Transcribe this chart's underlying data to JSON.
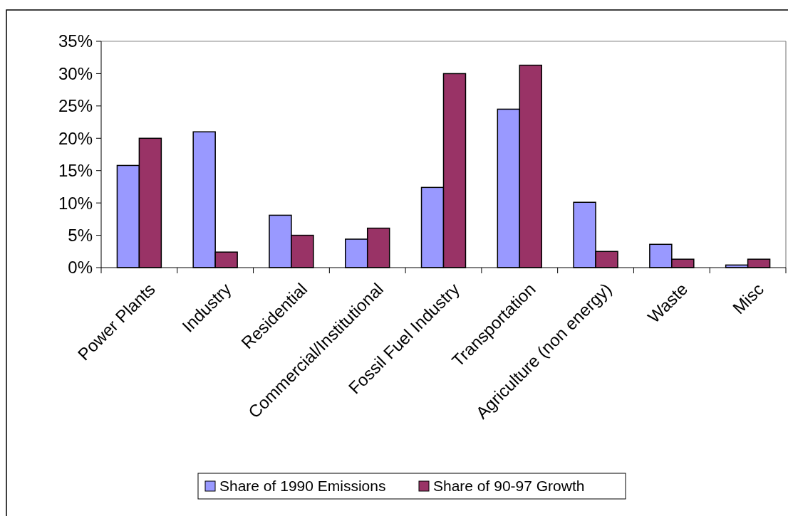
{
  "chart_data": {
    "type": "bar",
    "categories": [
      "Power Plants",
      "Industry",
      "Residential",
      "Commercial/Institutional",
      "Fossil Fuel Industry",
      "Transportation",
      "Agriculture (non energy)",
      "Waste",
      "Misc"
    ],
    "series": [
      {
        "name": "Share of 1990 Emissions",
        "color": "#9999ff",
        "values": [
          15.8,
          21.0,
          8.1,
          4.4,
          12.4,
          24.5,
          10.1,
          3.6,
          0.4
        ]
      },
      {
        "name": "Share of 90-97 Growth",
        "color": "#993366",
        "values": [
          20.0,
          2.4,
          5.0,
          6.1,
          30.0,
          31.3,
          2.5,
          1.3,
          1.3
        ]
      }
    ],
    "ylim": [
      0,
      35
    ],
    "yticks": [
      {
        "value": 0,
        "label": "0%"
      },
      {
        "value": 5,
        "label": "5%"
      },
      {
        "value": 10,
        "label": "10%"
      },
      {
        "value": 15,
        "label": "15%"
      },
      {
        "value": 20,
        "label": "20%"
      },
      {
        "value": 25,
        "label": "25%"
      },
      {
        "value": 30,
        "label": "30%"
      },
      {
        "value": 35,
        "label": "35%"
      }
    ],
    "grid": false,
    "legend": "bottom"
  }
}
